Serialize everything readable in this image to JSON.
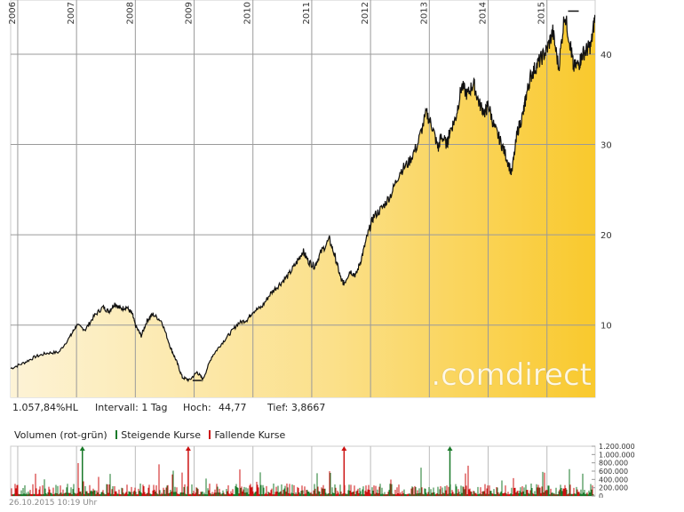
{
  "chart_data": [
    {
      "type": "area",
      "x_ticks": [
        "2006",
        "2007",
        "2008",
        "2009",
        "2010",
        "2011",
        "2012",
        "2013",
        "2014",
        "2015"
      ],
      "y_ticks": [
        10,
        20,
        30,
        40
      ],
      "ylim": [
        2,
        46
      ],
      "xlim": [
        2005.88,
        2015.82
      ],
      "grid": true,
      "series": [
        {
          "x": [
            2005.88,
            2006.1,
            2006.3,
            2006.5,
            2006.7,
            2006.9,
            2007.0,
            2007.15,
            2007.3,
            2007.45,
            2007.55,
            2007.65,
            2007.75,
            2007.85,
            2007.95,
            2008.0,
            2008.1,
            2008.2,
            2008.3,
            2008.45,
            2008.6,
            2008.7,
            2008.8,
            2008.92,
            2009.05,
            2009.15,
            2009.3,
            2009.45,
            2009.6,
            2009.75,
            2009.9,
            2010.0,
            2010.15,
            2010.3,
            2010.45,
            2010.6,
            2010.75,
            2010.85,
            2010.95,
            2011.05,
            2011.15,
            2011.3,
            2011.4,
            2011.5,
            2011.55,
            2011.65,
            2011.75,
            2011.85,
            2011.95,
            2012.05,
            2012.2,
            2012.35,
            2012.5,
            2012.65,
            2012.8,
            2012.95,
            2013.05,
            2013.15,
            2013.2,
            2013.3,
            2013.35,
            2013.45,
            2013.55,
            2013.65,
            2013.75,
            2013.85,
            2013.95,
            2014.0,
            2014.1,
            2014.2,
            2014.3,
            2014.4,
            2014.5,
            2014.6,
            2014.65,
            2014.72,
            2014.8,
            2014.9,
            2015.0,
            2015.1,
            2015.2,
            2015.3,
            2015.4,
            2015.45,
            2015.55,
            2015.6,
            2015.68,
            2015.75,
            2015.82
          ],
          "y": [
            5.2,
            5.8,
            6.5,
            6.9,
            7.0,
            8.8,
            10.0,
            9.5,
            11.0,
            12.0,
            11.5,
            12.4,
            11.8,
            12.0,
            11.2,
            10.0,
            8.8,
            10.5,
            11.2,
            10.4,
            7.5,
            6.0,
            4.2,
            3.9,
            4.8,
            4.0,
            6.5,
            7.8,
            9.0,
            10.2,
            10.6,
            11.5,
            12.0,
            13.5,
            14.5,
            15.5,
            17.0,
            18.2,
            17.0,
            16.5,
            18.0,
            19.5,
            17.5,
            15.0,
            14.6,
            16.0,
            15.5,
            17.5,
            20.0,
            22.0,
            23.0,
            24.5,
            27.0,
            28.0,
            30.0,
            33.5,
            32.0,
            29.5,
            31.0,
            30.0,
            31.5,
            33.0,
            36.5,
            35.5,
            36.8,
            34.5,
            33.5,
            34.5,
            32.0,
            30.5,
            28.8,
            26.8,
            31.5,
            33.5,
            35.5,
            37.5,
            38.5,
            39.5,
            40.5,
            42.5,
            38.5,
            44.5,
            41.0,
            38.5,
            39.0,
            40.0,
            40.5,
            41.0,
            44.3
          ]
        }
      ],
      "info": {
        "performance": "1.057,84%HL",
        "interval_label": "Intervall: 1 Tag",
        "high_label": "Hoch:",
        "high_value": "44,77",
        "low_label": "Tief: 3,8667"
      },
      "watermark": ".comdirect",
      "colors": {
        "fill_start": "#fdf3d6",
        "fill_end": "#f9c92d",
        "line": "#111111",
        "grid": "#bbbbbb"
      }
    },
    {
      "type": "bar",
      "title": "Volumen (rot-grün)",
      "legend": [
        {
          "label": "Steigende Kurse",
          "color": "#1a7a2a"
        },
        {
          "label": "Fallende Kurse",
          "color": "#cc1111"
        }
      ],
      "y_ticks": [
        "0",
        "200.000",
        "400.000",
        "600.000",
        "800.000",
        "1.000.000",
        "1.200.000"
      ],
      "ylim": [
        0,
        1200000
      ],
      "peaks": [
        {
          "x": 2007.1,
          "color": "#1a7a2a"
        },
        {
          "x": 2008.9,
          "color": "#cc1111"
        },
        {
          "x": 2011.55,
          "color": "#cc1111"
        },
        {
          "x": 2013.35,
          "color": "#1a7a2a"
        }
      ]
    }
  ],
  "timestamp": "26.10.2015 10:19 Uhr"
}
